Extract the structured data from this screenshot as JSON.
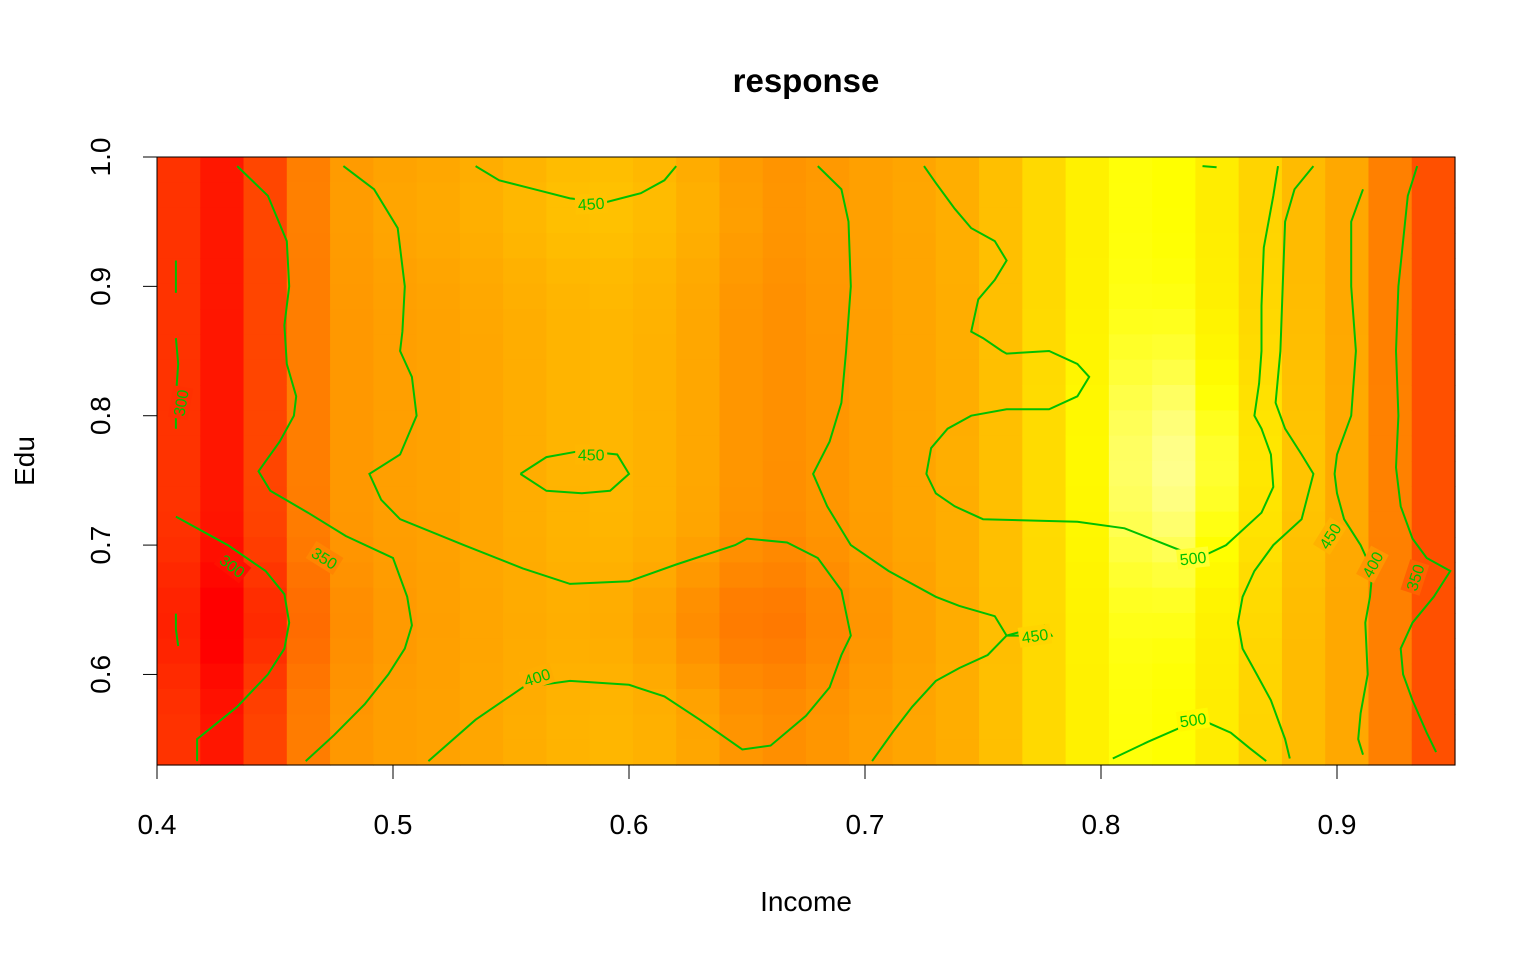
{
  "chart_data": {
    "type": "heatmap",
    "title": "response",
    "xlabel": "Income",
    "ylabel": "Edu",
    "xlim": [
      0.4,
      0.95
    ],
    "ylim": [
      0.53,
      1.0
    ],
    "x_ticks": [
      "0.4",
      "0.5",
      "0.6",
      "0.7",
      "0.8",
      "0.9"
    ],
    "y_ticks": [
      "0.6",
      "0.7",
      "0.8",
      "0.9",
      "1.0"
    ],
    "palette": [
      "#ff0000",
      "#ff5a00",
      "#ffa500",
      "#ffd700",
      "#ffff00",
      "#ffffcc",
      "#ffffff"
    ],
    "contour_color": "#00c000",
    "contour_levels": [
      300,
      350,
      400,
      450,
      500
    ],
    "contour_labels": [
      {
        "text": "300",
        "x": 0.41,
        "y": 0.81,
        "angle": -80
      },
      {
        "text": "300",
        "x": 0.432,
        "y": 0.684,
        "angle": 38
      },
      {
        "text": "350",
        "x": 0.471,
        "y": 0.69,
        "angle": 32
      },
      {
        "text": "400",
        "x": 0.561,
        "y": 0.598,
        "angle": -18
      },
      {
        "text": "450",
        "x": 0.584,
        "y": 0.964,
        "angle": -4
      },
      {
        "text": "450",
        "x": 0.584,
        "y": 0.77,
        "angle": 0
      },
      {
        "text": "450",
        "x": 0.772,
        "y": 0.63,
        "angle": -8
      },
      {
        "text": "500",
        "x": 0.839,
        "y": 0.69,
        "angle": -6
      },
      {
        "text": "500",
        "x": 0.839,
        "y": 0.565,
        "angle": -8
      },
      {
        "text": "450",
        "x": 0.897,
        "y": 0.707,
        "angle": -58
      },
      {
        "text": "400",
        "x": 0.915,
        "y": 0.685,
        "angle": -62
      },
      {
        "text": "350",
        "x": 0.933,
        "y": 0.675,
        "angle": -72
      }
    ],
    "contours": [
      {
        "level": 300,
        "points": [
          [
            0.408,
            0.92
          ],
          [
            0.408,
            0.895
          ]
        ]
      },
      {
        "level": 300,
        "points": [
          [
            0.408,
            0.86
          ],
          [
            0.409,
            0.84
          ],
          [
            0.408,
            0.815
          ],
          [
            0.408,
            0.79
          ]
        ]
      },
      {
        "level": 300,
        "points": [
          [
            0.408,
            0.647
          ],
          [
            0.408,
            0.635
          ],
          [
            0.409,
            0.622
          ]
        ]
      },
      {
        "level": 300,
        "points": [
          [
            0.408,
            0.722
          ],
          [
            0.43,
            0.7
          ],
          [
            0.446,
            0.68
          ],
          [
            0.454,
            0.662
          ],
          [
            0.456,
            0.64
          ],
          [
            0.454,
            0.62
          ],
          [
            0.447,
            0.6
          ],
          [
            0.434,
            0.575
          ],
          [
            0.417,
            0.55
          ],
          [
            0.417,
            0.533
          ]
        ]
      },
      {
        "level": 350,
        "points": [
          [
            0.434,
            0.993
          ],
          [
            0.447,
            0.97
          ],
          [
            0.455,
            0.935
          ],
          [
            0.456,
            0.9
          ],
          [
            0.454,
            0.87
          ],
          [
            0.455,
            0.84
          ],
          [
            0.459,
            0.815
          ],
          [
            0.458,
            0.8
          ],
          [
            0.452,
            0.78
          ],
          [
            0.443,
            0.757
          ],
          [
            0.448,
            0.742
          ],
          [
            0.464,
            0.725
          ],
          [
            0.48,
            0.707
          ],
          [
            0.5,
            0.69
          ],
          [
            0.506,
            0.66
          ],
          [
            0.508,
            0.638
          ],
          [
            0.505,
            0.62
          ],
          [
            0.498,
            0.6
          ],
          [
            0.488,
            0.577
          ],
          [
            0.475,
            0.553
          ],
          [
            0.463,
            0.533
          ]
        ]
      },
      {
        "level": 400,
        "points": [
          [
            0.479,
            0.993
          ],
          [
            0.492,
            0.975
          ],
          [
            0.502,
            0.945
          ],
          [
            0.505,
            0.9
          ],
          [
            0.504,
            0.865
          ],
          [
            0.503,
            0.85
          ],
          [
            0.508,
            0.83
          ],
          [
            0.51,
            0.8
          ],
          [
            0.503,
            0.77
          ],
          [
            0.49,
            0.755
          ],
          [
            0.495,
            0.735
          ],
          [
            0.503,
            0.72
          ],
          [
            0.53,
            0.7
          ],
          [
            0.555,
            0.682
          ],
          [
            0.575,
            0.67
          ],
          [
            0.6,
            0.672
          ],
          [
            0.62,
            0.685
          ],
          [
            0.645,
            0.7
          ],
          [
            0.65,
            0.705
          ],
          [
            0.667,
            0.702
          ],
          [
            0.68,
            0.69
          ],
          [
            0.69,
            0.665
          ],
          [
            0.694,
            0.63
          ],
          [
            0.69,
            0.615
          ],
          [
            0.685,
            0.59
          ],
          [
            0.675,
            0.568
          ],
          [
            0.66,
            0.545
          ],
          [
            0.648,
            0.542
          ],
          [
            0.63,
            0.565
          ],
          [
            0.615,
            0.583
          ],
          [
            0.6,
            0.592
          ],
          [
            0.575,
            0.595
          ],
          [
            0.555,
            0.59
          ],
          [
            0.535,
            0.565
          ],
          [
            0.515,
            0.533
          ]
        ]
      },
      {
        "level": 450,
        "points": [
          [
            0.535,
            0.993
          ],
          [
            0.545,
            0.982
          ],
          [
            0.56,
            0.975
          ],
          [
            0.575,
            0.968
          ],
          [
            0.59,
            0.965
          ],
          [
            0.605,
            0.972
          ],
          [
            0.615,
            0.982
          ],
          [
            0.62,
            0.993
          ]
        ]
      },
      {
        "level": 450,
        "points": [
          [
            0.554,
            0.755
          ],
          [
            0.565,
            0.768
          ],
          [
            0.58,
            0.773
          ],
          [
            0.595,
            0.77
          ],
          [
            0.6,
            0.755
          ],
          [
            0.592,
            0.742
          ],
          [
            0.58,
            0.74
          ],
          [
            0.565,
            0.742
          ],
          [
            0.554,
            0.755
          ]
        ]
      },
      {
        "level": 450,
        "points": [
          [
            0.68,
            0.993
          ],
          [
            0.69,
            0.975
          ],
          [
            0.693,
            0.95
          ],
          [
            0.694,
            0.9
          ],
          [
            0.692,
            0.85
          ],
          [
            0.69,
            0.81
          ],
          [
            0.685,
            0.78
          ],
          [
            0.678,
            0.755
          ],
          [
            0.684,
            0.73
          ],
          [
            0.694,
            0.7
          ],
          [
            0.71,
            0.68
          ],
          [
            0.73,
            0.66
          ],
          [
            0.74,
            0.653
          ],
          [
            0.755,
            0.645
          ],
          [
            0.76,
            0.63
          ],
          [
            0.776,
            0.638
          ],
          [
            0.779,
            0.63
          ],
          [
            0.76,
            0.63
          ],
          [
            0.752,
            0.615
          ],
          [
            0.74,
            0.605
          ],
          [
            0.73,
            0.595
          ],
          [
            0.72,
            0.575
          ],
          [
            0.712,
            0.556
          ],
          [
            0.703,
            0.533
          ]
        ]
      },
      {
        "level": 500,
        "points": [
          [
            0.725,
            0.993
          ],
          [
            0.73,
            0.98
          ],
          [
            0.738,
            0.96
          ],
          [
            0.745,
            0.945
          ],
          [
            0.755,
            0.935
          ],
          [
            0.76,
            0.92
          ],
          [
            0.755,
            0.905
          ],
          [
            0.748,
            0.89
          ],
          [
            0.745,
            0.865
          ],
          [
            0.75,
            0.86
          ],
          [
            0.758,
            0.85
          ],
          [
            0.76,
            0.848
          ],
          [
            0.778,
            0.85
          ],
          [
            0.79,
            0.84
          ],
          [
            0.795,
            0.83
          ],
          [
            0.79,
            0.815
          ],
          [
            0.778,
            0.805
          ],
          [
            0.76,
            0.805
          ],
          [
            0.745,
            0.8
          ],
          [
            0.735,
            0.79
          ],
          [
            0.728,
            0.775
          ],
          [
            0.726,
            0.755
          ],
          [
            0.73,
            0.74
          ],
          [
            0.738,
            0.73
          ],
          [
            0.75,
            0.72
          ],
          [
            0.79,
            0.718
          ],
          [
            0.81,
            0.713
          ],
          [
            0.835,
            0.695
          ],
          [
            0.845,
            0.693
          ],
          [
            0.853,
            0.7
          ],
          [
            0.868,
            0.725
          ],
          [
            0.873,
            0.745
          ],
          [
            0.872,
            0.77
          ],
          [
            0.868,
            0.79
          ],
          [
            0.865,
            0.8
          ],
          [
            0.867,
            0.825
          ],
          [
            0.868,
            0.85
          ],
          [
            0.868,
            0.885
          ],
          [
            0.869,
            0.93
          ],
          [
            0.873,
            0.97
          ],
          [
            0.875,
            0.993
          ]
        ]
      },
      {
        "level": 500,
        "points": [
          [
            0.805,
            0.535
          ],
          [
            0.82,
            0.548
          ],
          [
            0.835,
            0.56
          ],
          [
            0.845,
            0.563
          ],
          [
            0.855,
            0.555
          ],
          [
            0.863,
            0.543
          ],
          [
            0.87,
            0.533
          ]
        ]
      },
      {
        "level": 500,
        "points": [
          [
            0.843,
            0.993
          ],
          [
            0.849,
            0.992
          ]
        ]
      },
      {
        "level": 450,
        "points": [
          [
            0.89,
            0.993
          ],
          [
            0.882,
            0.975
          ],
          [
            0.878,
            0.95
          ],
          [
            0.877,
            0.9
          ],
          [
            0.876,
            0.85
          ],
          [
            0.874,
            0.81
          ],
          [
            0.878,
            0.79
          ],
          [
            0.885,
            0.77
          ],
          [
            0.89,
            0.755
          ],
          [
            0.885,
            0.72
          ],
          [
            0.873,
            0.7
          ],
          [
            0.865,
            0.68
          ],
          [
            0.86,
            0.66
          ],
          [
            0.858,
            0.64
          ],
          [
            0.86,
            0.62
          ],
          [
            0.866,
            0.6
          ],
          [
            0.872,
            0.58
          ],
          [
            0.878,
            0.55
          ],
          [
            0.88,
            0.535
          ]
        ]
      },
      {
        "level": 400,
        "points": [
          [
            0.911,
            0.975
          ],
          [
            0.906,
            0.95
          ],
          [
            0.906,
            0.9
          ],
          [
            0.908,
            0.85
          ],
          [
            0.906,
            0.8
          ],
          [
            0.9,
            0.77
          ],
          [
            0.899,
            0.755
          ],
          [
            0.9,
            0.74
          ],
          [
            0.903,
            0.72
          ],
          [
            0.91,
            0.7
          ],
          [
            0.915,
            0.68
          ],
          [
            0.914,
            0.66
          ],
          [
            0.912,
            0.64
          ],
          [
            0.913,
            0.6
          ],
          [
            0.91,
            0.57
          ],
          [
            0.909,
            0.55
          ],
          [
            0.911,
            0.538
          ]
        ]
      },
      {
        "level": 350,
        "points": [
          [
            0.934,
            0.993
          ],
          [
            0.93,
            0.97
          ],
          [
            0.928,
            0.935
          ],
          [
            0.926,
            0.9
          ],
          [
            0.925,
            0.85
          ],
          [
            0.926,
            0.8
          ],
          [
            0.925,
            0.76
          ],
          [
            0.927,
            0.73
          ],
          [
            0.932,
            0.705
          ],
          [
            0.938,
            0.69
          ],
          [
            0.948,
            0.68
          ],
          [
            0.941,
            0.66
          ],
          [
            0.932,
            0.64
          ],
          [
            0.927,
            0.62
          ],
          [
            0.928,
            0.6
          ],
          [
            0.932,
            0.58
          ],
          [
            0.938,
            0.555
          ],
          [
            0.942,
            0.54
          ]
        ]
      }
    ]
  }
}
